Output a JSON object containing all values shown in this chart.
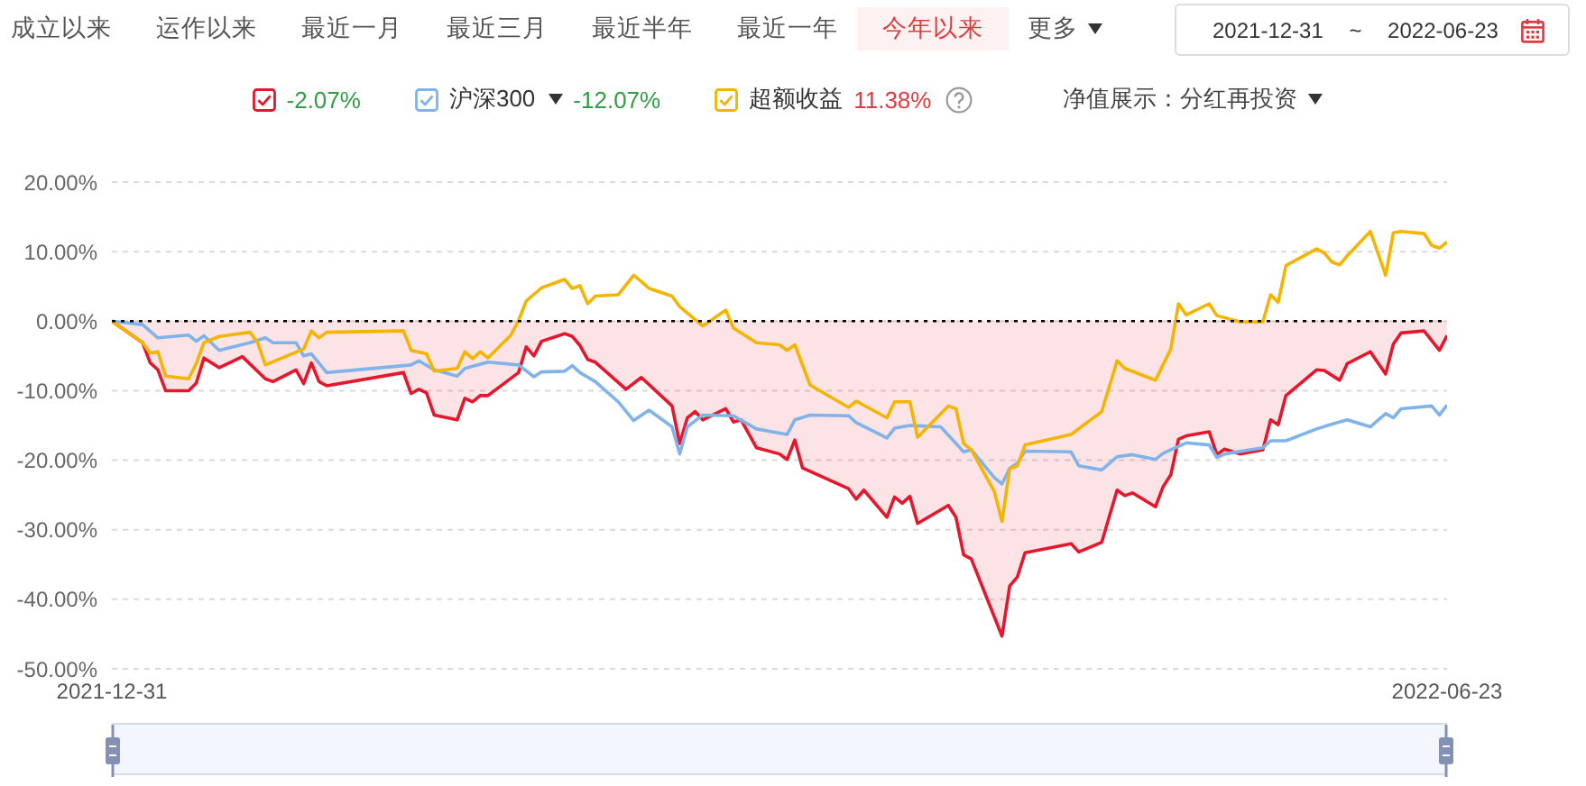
{
  "chart_data": {
    "type": "line",
    "annotations": [
      "成立以来",
      "运作以来",
      "最近一月",
      "最近三月",
      "最近半年",
      "最近一年",
      "今年以来",
      "更多",
      "2021-12-31 ~ 2022-06-23",
      "-2.07%",
      "-12.07%",
      "11.38%",
      "净值展示：分红再投资"
    ],
    "series": [
      {
        "type": "area",
        "color": "#e5172c",
        "x": [
          "2021-12-31",
          "2022-01-04",
          "2022-01-05",
          "2022-01-06",
          "2022-01-07",
          "2022-01-10",
          "2022-01-11",
          "2022-01-12",
          "2022-01-14",
          "2022-01-17",
          "2022-01-20",
          "2022-01-21",
          "2022-01-24",
          "2022-01-25",
          "2022-01-26",
          "2022-01-27",
          "2022-01-28",
          "2022-02-07",
          "2022-02-08",
          "2022-02-09",
          "2022-02-10",
          "2022-02-11",
          "2022-02-14",
          "2022-02-15",
          "2022-02-16",
          "2022-02-17",
          "2022-02-18",
          "2022-02-22",
          "2022-02-23",
          "2022-02-24",
          "2022-02-25",
          "2022-02-28",
          "2022-03-01",
          "2022-03-02",
          "2022-03-03",
          "2022-03-04",
          "2022-03-08",
          "2022-03-10",
          "2022-03-14",
          "2022-03-15",
          "2022-03-16",
          "2022-03-17",
          "2022-03-18",
          "2022-03-21",
          "2022-03-22",
          "2022-03-23",
          "2022-03-25",
          "2022-03-28",
          "2022-03-29",
          "2022-03-30",
          "2022-03-31",
          "2022-04-06",
          "2022-04-07",
          "2022-04-08",
          "2022-04-11",
          "2022-04-12",
          "2022-04-13",
          "2022-04-14",
          "2022-04-15",
          "2022-04-19",
          "2022-04-20",
          "2022-04-21",
          "2022-04-22",
          "2022-04-26",
          "2022-04-27",
          "2022-04-28",
          "2022-04-29",
          "2022-05-05",
          "2022-05-06",
          "2022-05-09",
          "2022-05-11",
          "2022-05-12",
          "2022-05-13",
          "2022-05-16",
          "2022-05-17",
          "2022-05-18",
          "2022-05-19",
          "2022-05-20",
          "2022-05-23",
          "2022-05-24",
          "2022-05-25",
          "2022-05-27",
          "2022-05-30",
          "2022-05-31",
          "2022-06-01",
          "2022-06-02",
          "2022-06-06",
          "2022-06-07",
          "2022-06-09",
          "2022-06-10",
          "2022-06-13",
          "2022-06-15",
          "2022-06-16",
          "2022-06-17",
          "2022-06-20",
          "2022-06-22",
          "2022-06-23"
        ],
        "values": [
          0,
          -3.1,
          -6.0,
          -7.0,
          -10.0,
          -10.0,
          -8.9,
          -5.3,
          -6.7,
          -5.1,
          -8.3,
          -8.7,
          -7.0,
          -9.0,
          -6.0,
          -8.7,
          -9.3,
          -7.4,
          -10.4,
          -9.8,
          -10.3,
          -13.5,
          -14.2,
          -11.1,
          -11.6,
          -10.7,
          -10.7,
          -7.4,
          -3.7,
          -5.0,
          -2.9,
          -1.8,
          -2.2,
          -3.5,
          -5.5,
          -5.9,
          -9.8,
          -8.1,
          -12.2,
          -17.6,
          -13.9,
          -13.0,
          -14.2,
          -12.6,
          -14.5,
          -14.2,
          -18.2,
          -19.1,
          -19.9,
          -17.1,
          -21.1,
          -24.1,
          -25.6,
          -24.3,
          -28.2,
          -25.3,
          -26.2,
          -25.2,
          -29.1,
          -26.5,
          -28.2,
          -33.6,
          -34.2,
          -45.3,
          -38.1,
          -36.8,
          -33.3,
          -32.0,
          -33.2,
          -31.8,
          -24.3,
          -25.1,
          -24.7,
          -26.7,
          -23.8,
          -22.1,
          -17.0,
          -16.5,
          -15.9,
          -19.2,
          -18.4,
          -19.1,
          -18.5,
          -14.2,
          -14.9,
          -10.7,
          -7.0,
          -7.1,
          -8.5,
          -6.1,
          -4.4,
          -7.6,
          -3.3,
          -1.7,
          -1.4,
          -4.2,
          -2.07
        ]
      },
      {
        "name": "沪深300",
        "color": "#7fb3ea",
        "x": [
          "2021-12-31",
          "2022-01-04",
          "2022-01-06",
          "2022-01-10",
          "2022-01-11",
          "2022-01-12",
          "2022-01-14",
          "2022-01-18",
          "2022-01-20",
          "2022-01-21",
          "2022-01-24",
          "2022-01-25",
          "2022-01-26",
          "2022-01-28",
          "2022-02-08",
          "2022-02-09",
          "2022-02-11",
          "2022-02-14",
          "2022-02-15",
          "2022-02-18",
          "2022-02-22",
          "2022-02-24",
          "2022-02-25",
          "2022-02-28",
          "2022-03-01",
          "2022-03-02",
          "2022-03-04",
          "2022-03-07",
          "2022-03-09",
          "2022-03-11",
          "2022-03-14",
          "2022-03-15",
          "2022-03-16",
          "2022-03-18",
          "2022-03-22",
          "2022-03-25",
          "2022-03-29",
          "2022-03-30",
          "2022-04-01",
          "2022-04-06",
          "2022-04-07",
          "2022-04-11",
          "2022-04-12",
          "2022-04-14",
          "2022-04-18",
          "2022-04-21",
          "2022-04-22",
          "2022-04-25",
          "2022-04-26",
          "2022-04-27",
          "2022-04-28",
          "2022-04-29",
          "2022-05-05",
          "2022-05-06",
          "2022-05-09",
          "2022-05-11",
          "2022-05-13",
          "2022-05-16",
          "2022-05-17",
          "2022-05-20",
          "2022-05-23",
          "2022-05-24",
          "2022-05-25",
          "2022-05-30",
          "2022-05-31",
          "2022-06-02",
          "2022-06-06",
          "2022-06-08",
          "2022-06-10",
          "2022-06-13",
          "2022-06-15",
          "2022-06-16",
          "2022-06-17",
          "2022-06-21",
          "2022-06-22",
          "2022-06-23"
        ],
        "values": [
          0,
          -0.5,
          -2.4,
          -2.0,
          -2.9,
          -2.1,
          -4.2,
          -3.1,
          -2.4,
          -3.1,
          -3.1,
          -5.0,
          -4.7,
          -7.4,
          -6.3,
          -5.7,
          -7.0,
          -7.9,
          -6.8,
          -5.9,
          -6.3,
          -8.0,
          -7.3,
          -7.2,
          -6.4,
          -7.4,
          -8.7,
          -11.6,
          -14.3,
          -12.8,
          -15.2,
          -19.1,
          -15.2,
          -13.5,
          -13.6,
          -15.5,
          -16.3,
          -14.2,
          -13.5,
          -13.6,
          -14.6,
          -16.8,
          -15.4,
          -15.0,
          -15.2,
          -18.8,
          -18.5,
          -22.5,
          -23.4,
          -21.2,
          -20.4,
          -18.7,
          -18.8,
          -20.8,
          -21.4,
          -19.5,
          -19.2,
          -19.9,
          -19.0,
          -17.5,
          -17.8,
          -19.6,
          -19.1,
          -18.2,
          -17.2,
          -17.2,
          -15.5,
          -14.8,
          -14.2,
          -15.2,
          -13.3,
          -13.9,
          -12.6,
          -12.2,
          -13.5,
          -12.07
        ]
      },
      {
        "name": "超额收益",
        "color": "#f5b400",
        "x": [
          "2021-12-31",
          "2022-01-04",
          "2022-01-05",
          "2022-01-06",
          "2022-01-07",
          "2022-01-10",
          "2022-01-11",
          "2022-01-12",
          "2022-01-14",
          "2022-01-18",
          "2022-01-19",
          "2022-01-20",
          "2022-01-25",
          "2022-01-26",
          "2022-01-27",
          "2022-01-28",
          "2022-02-07",
          "2022-02-08",
          "2022-02-10",
          "2022-02-11",
          "2022-02-14",
          "2022-02-15",
          "2022-02-16",
          "2022-02-17",
          "2022-02-18",
          "2022-02-21",
          "2022-02-22",
          "2022-02-23",
          "2022-02-25",
          "2022-02-28",
          "2022-03-01",
          "2022-03-02",
          "2022-03-03",
          "2022-03-04",
          "2022-03-07",
          "2022-03-09",
          "2022-03-10",
          "2022-03-11",
          "2022-03-14",
          "2022-03-15",
          "2022-03-18",
          "2022-03-21",
          "2022-03-22",
          "2022-03-25",
          "2022-03-28",
          "2022-03-29",
          "2022-03-30",
          "2022-04-01",
          "2022-04-06",
          "2022-04-07",
          "2022-04-11",
          "2022-04-12",
          "2022-04-14",
          "2022-04-15",
          "2022-04-19",
          "2022-04-20",
          "2022-04-21",
          "2022-04-22",
          "2022-04-25",
          "2022-04-26",
          "2022-04-27",
          "2022-04-28",
          "2022-04-29",
          "2022-05-05",
          "2022-05-09",
          "2022-05-11",
          "2022-05-12",
          "2022-05-16",
          "2022-05-18",
          "2022-05-19",
          "2022-05-20",
          "2022-05-23",
          "2022-05-24",
          "2022-05-27",
          "2022-05-30",
          "2022-05-31",
          "2022-06-01",
          "2022-06-02",
          "2022-06-06",
          "2022-06-07",
          "2022-06-08",
          "2022-06-09",
          "2022-06-10",
          "2022-06-13",
          "2022-06-15",
          "2022-06-16",
          "2022-06-17",
          "2022-06-20",
          "2022-06-21",
          "2022-06-22",
          "2022-06-23"
        ],
        "values": [
          0,
          -3.1,
          -4.6,
          -4.4,
          -7.9,
          -8.3,
          -6.1,
          -3.1,
          -2.2,
          -1.6,
          -3.1,
          -6.3,
          -4.0,
          -1.4,
          -2.4,
          -1.6,
          -1.4,
          -4.2,
          -4.7,
          -7.2,
          -6.8,
          -4.4,
          -5.4,
          -4.4,
          -5.3,
          -2.0,
          0.1,
          2.9,
          4.8,
          6.0,
          4.7,
          5.1,
          2.5,
          3.6,
          3.8,
          6.6,
          5.7,
          4.7,
          3.6,
          2.1,
          -0.7,
          1.6,
          -1.0,
          -3.1,
          -3.4,
          -4.2,
          -3.4,
          -9.2,
          -12.4,
          -11.5,
          -13.9,
          -11.6,
          -11.6,
          -16.7,
          -12.2,
          -12.6,
          -17.6,
          -18.5,
          -24.5,
          -28.8,
          -21.2,
          -20.8,
          -17.8,
          -16.3,
          -13.0,
          -5.7,
          -6.8,
          -8.5,
          -4.0,
          2.5,
          0.9,
          2.5,
          0.8,
          -0.1,
          -0.1,
          3.8,
          2.7,
          8.0,
          10.4,
          9.8,
          8.5,
          8.1,
          9.4,
          12.9,
          6.6,
          12.7,
          12.9,
          12.6,
          10.9,
          10.5,
          11.38
        ]
      }
    ],
    "xlim": [
      "2021-12-31",
      "2022-06-23"
    ],
    "xticks": [
      "2021-12-31",
      "2022-06-23"
    ],
    "ylim": [
      -50,
      20
    ],
    "yticks": [
      {
        "value": -50,
        "label": "-50.00%"
      },
      {
        "value": -40,
        "label": "-40.00%"
      },
      {
        "value": -30,
        "label": "-30.00%"
      },
      {
        "value": -20,
        "label": "-20.00%"
      },
      {
        "value": -10,
        "label": "-10.00%"
      },
      {
        "value": 0,
        "label": "0.00%"
      },
      {
        "value": 10,
        "label": "10.00%"
      },
      {
        "value": 20,
        "label": "20.00%"
      }
    ],
    "ref_lines": [
      {
        "axis": "y",
        "value": 0,
        "color": "#000000",
        "line_style": "dotted"
      }
    ],
    "grid": "y",
    "legend": "top"
  }
}
